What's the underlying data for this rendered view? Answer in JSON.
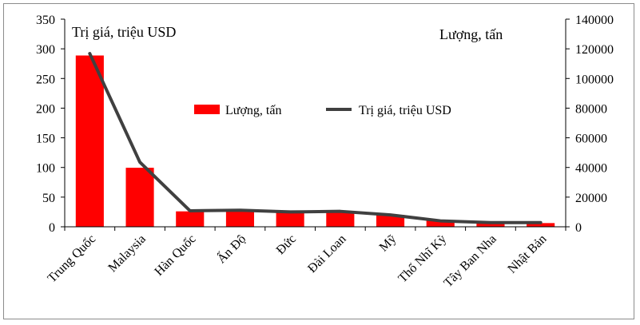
{
  "chart_data": {
    "type": "bar",
    "categories": [
      "Trung Quốc",
      "Malaysia",
      "Hàn Quốc",
      "Ấn Độ",
      "Đức",
      "Đài Loan",
      "Mỹ",
      "Thổ Nhĩ Kỳ",
      "Tây Ban Nha",
      "Nhật Bản"
    ],
    "series": [
      {
        "name": "Lượng, tấn",
        "type": "bar",
        "axis": "right",
        "color": "#ff0000",
        "values": [
          115500,
          39800,
          10400,
          10400,
          9600,
          9600,
          8000,
          4500,
          2500,
          2500
        ]
      },
      {
        "name": "Trị giá,  triệu USD",
        "type": "line",
        "axis": "left",
        "color": "#404040",
        "values": [
          292,
          109,
          27,
          28,
          25,
          26,
          20,
          10,
          7,
          7
        ]
      }
    ],
    "left_axis": {
      "title": "Trị giá, triệu USD",
      "ylim": [
        0,
        350
      ],
      "ticks": [
        "0",
        "50",
        "100",
        "150",
        "200",
        "250",
        "300",
        "350"
      ]
    },
    "right_axis": {
      "title": "Lượng, tấn",
      "ylim": [
        0,
        140000
      ],
      "ticks": [
        "0",
        "20000",
        "40000",
        "60000",
        "80000",
        "100000",
        "120000",
        "140000"
      ]
    },
    "legend": {
      "position": "upper-center",
      "items": [
        "Lượng, tấn",
        "Trị giá,  triệu USD"
      ]
    },
    "grid": false
  }
}
